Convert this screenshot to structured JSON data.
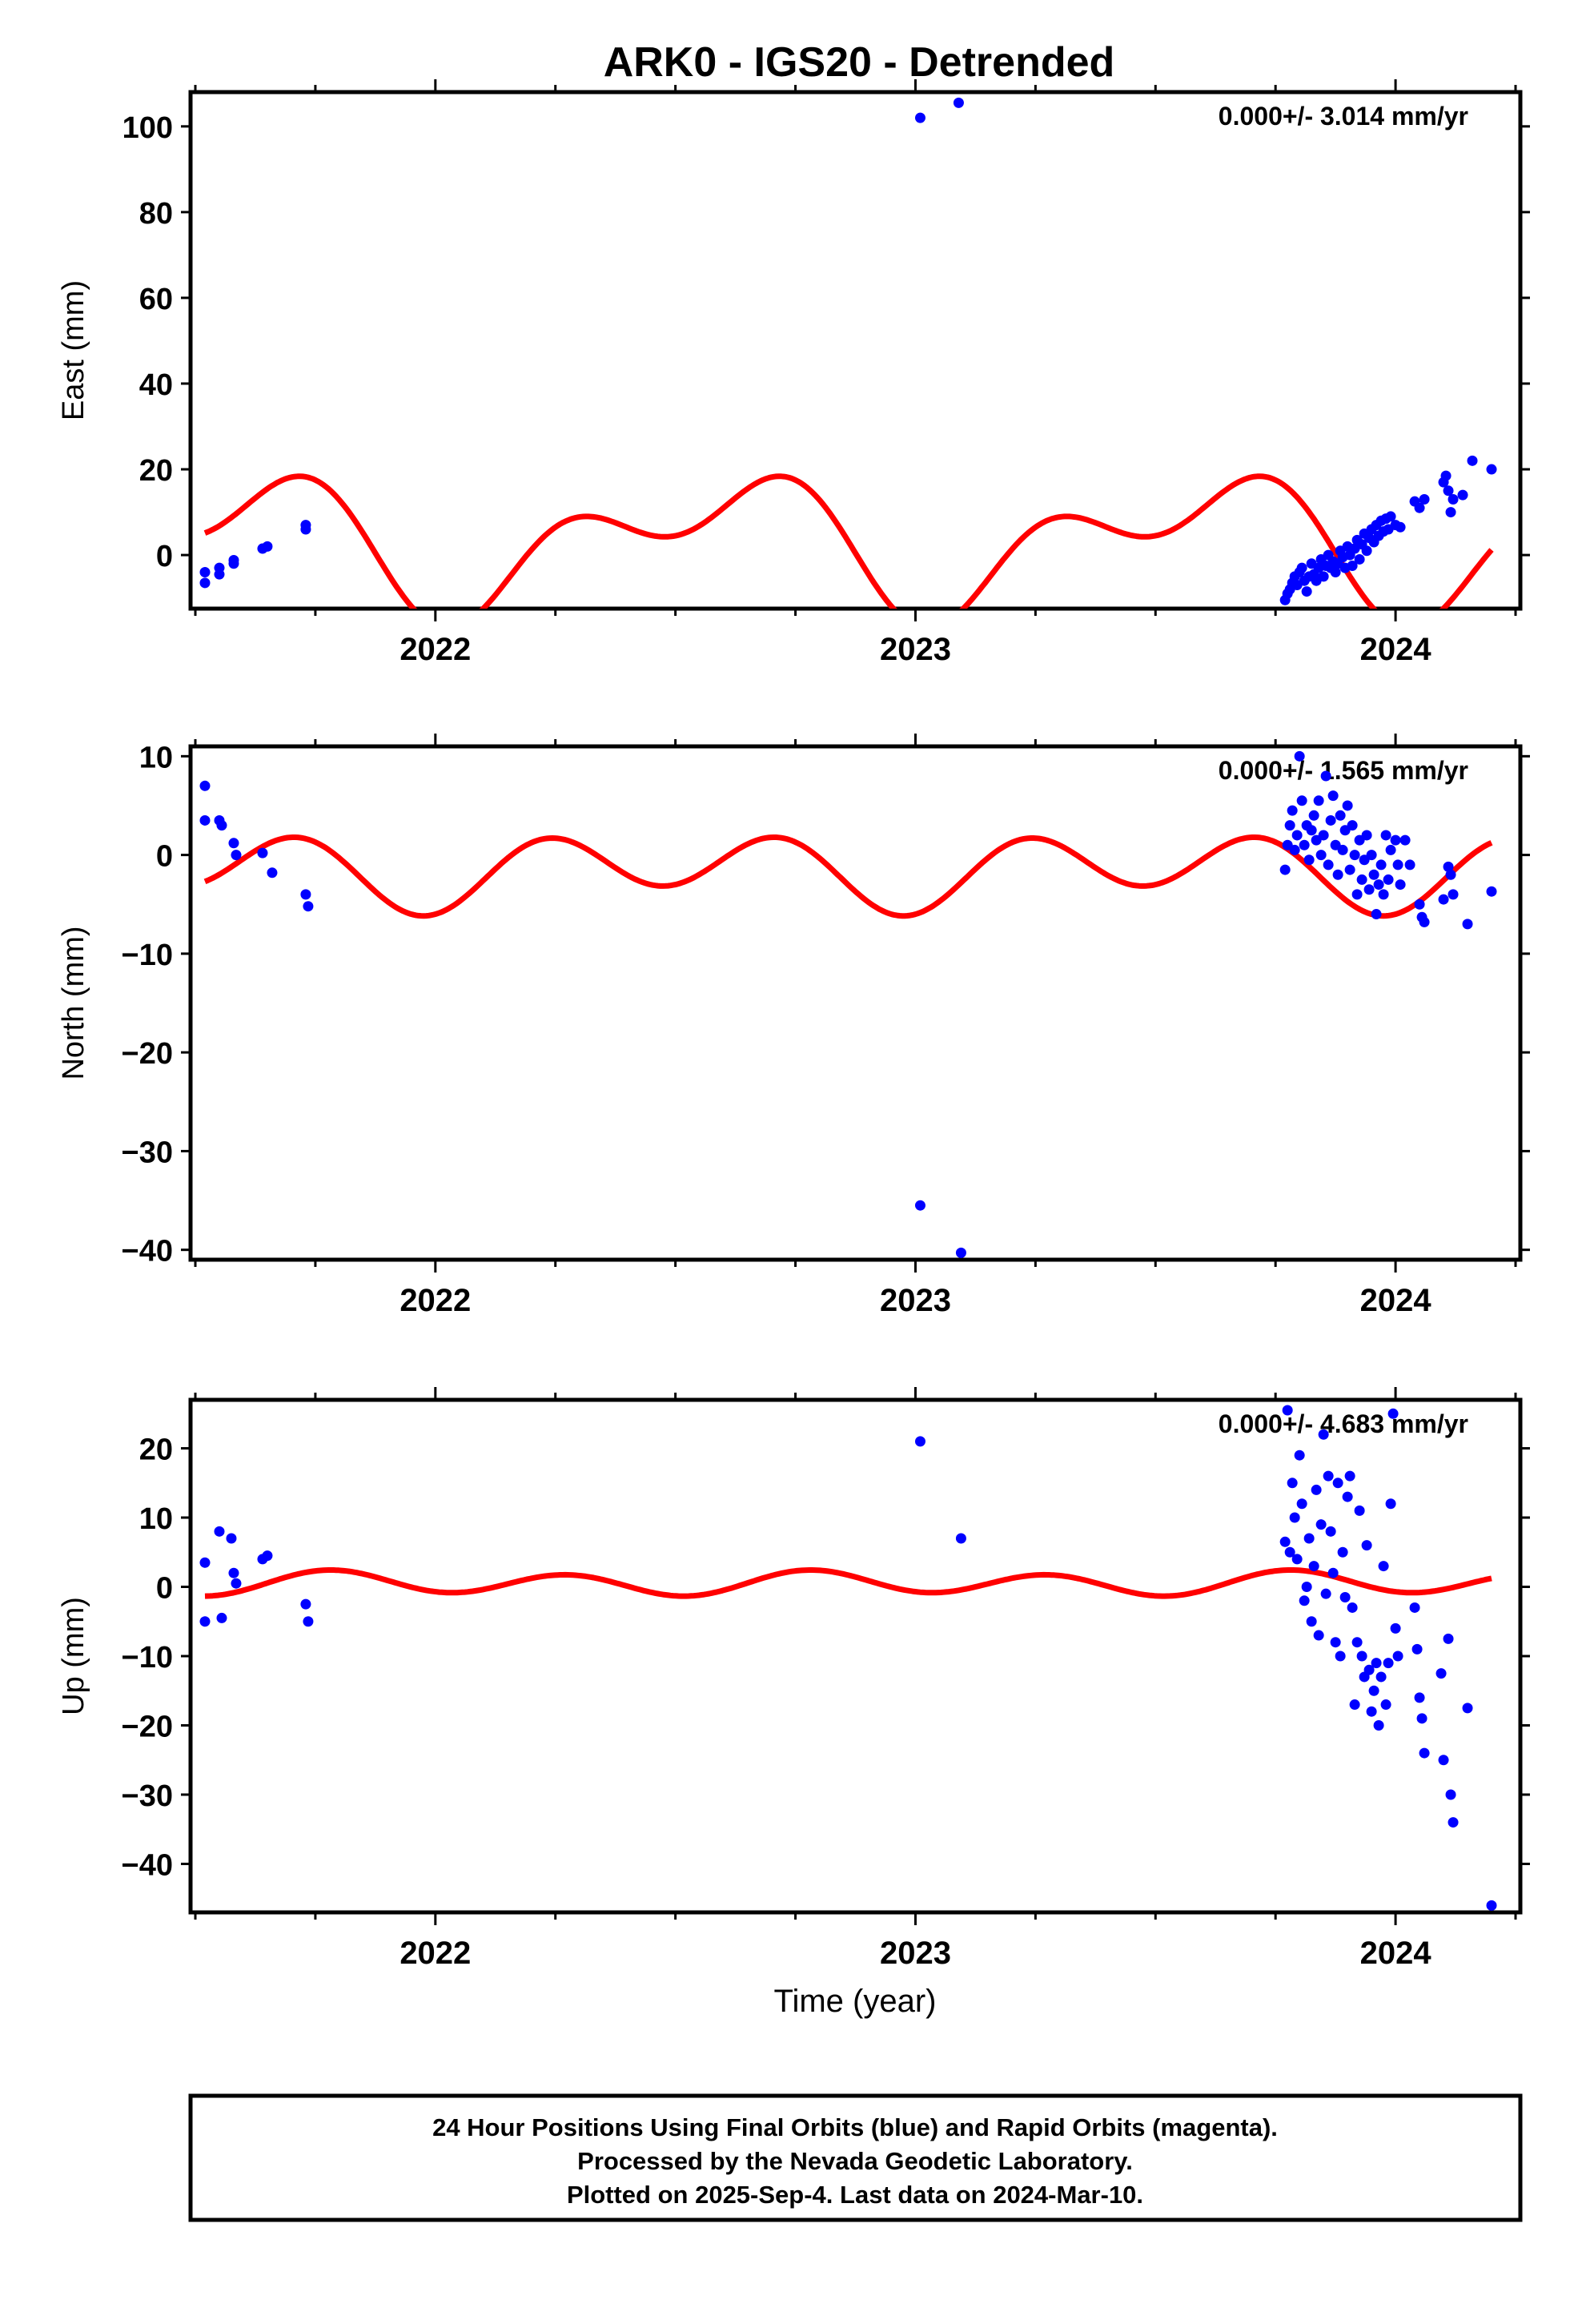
{
  "title": "ARK0 - IGS20 - Detrended",
  "xlabel": "Time (year)",
  "footer": {
    "line1": "24 Hour Positions Using Final Orbits (blue) and Rapid Orbits (magenta).",
    "line2": "Processed by the Nevada Geodetic Laboratory.",
    "line3": "Plotted on 2025-Sep-4. Last data on 2024-Mar-10."
  },
  "colors": {
    "points": "#0000ff",
    "model": "#ff0000",
    "axes": "#000000"
  },
  "chart_data": [
    {
      "type": "scatter",
      "panel": "east",
      "ylabel": "East (mm)",
      "rate_label": "0.000+/- 3.014 mm/yr",
      "xlim": [
        2021.49,
        2024.26
      ],
      "ylim": [
        -12.5,
        108
      ],
      "xticks": [
        2022,
        2023,
        2024
      ],
      "yticks": [
        100,
        80,
        60,
        40,
        20,
        0
      ],
      "ytick_labels": [
        "100",
        "80",
        "60",
        "40",
        "20",
        "0"
      ],
      "points": [
        [
          2021.52,
          -6.5
        ],
        [
          2021.52,
          -4
        ],
        [
          2021.55,
          -3
        ],
        [
          2021.55,
          -4.5
        ],
        [
          2021.58,
          -2
        ],
        [
          2021.58,
          -1.2
        ],
        [
          2021.64,
          1.5
        ],
        [
          2021.65,
          2
        ],
        [
          2021.73,
          6
        ],
        [
          2021.73,
          7
        ],
        [
          2023.01,
          102
        ],
        [
          2023.09,
          105.5
        ],
        [
          2023.77,
          -10.5
        ],
        [
          2023.775,
          -9
        ],
        [
          2023.78,
          -8
        ],
        [
          2023.785,
          -6.5
        ],
        [
          2023.79,
          -5
        ],
        [
          2023.795,
          -7
        ],
        [
          2023.8,
          -4
        ],
        [
          2023.805,
          -3
        ],
        [
          2023.81,
          -6
        ],
        [
          2023.815,
          -8.5
        ],
        [
          2023.82,
          -5
        ],
        [
          2023.825,
          -2
        ],
        [
          2023.83,
          -4.5
        ],
        [
          2023.835,
          -6
        ],
        [
          2023.84,
          -3
        ],
        [
          2023.845,
          -1
        ],
        [
          2023.85,
          -5
        ],
        [
          2023.855,
          -2.5
        ],
        [
          2023.86,
          0
        ],
        [
          2023.865,
          -3
        ],
        [
          2023.87,
          -1.5
        ],
        [
          2023.875,
          -4
        ],
        [
          2023.88,
          -2
        ],
        [
          2023.885,
          1
        ],
        [
          2023.89,
          -0.5
        ],
        [
          2023.895,
          -3
        ],
        [
          2023.9,
          2
        ],
        [
          2023.905,
          0
        ],
        [
          2023.91,
          -2.5
        ],
        [
          2023.915,
          1.5
        ],
        [
          2023.92,
          3.5
        ],
        [
          2023.925,
          -1
        ],
        [
          2023.93,
          2.5
        ],
        [
          2023.935,
          5
        ],
        [
          2023.94,
          1
        ],
        [
          2023.945,
          4
        ],
        [
          2023.95,
          6
        ],
        [
          2023.955,
          3
        ],
        [
          2023.96,
          7
        ],
        [
          2023.965,
          4.5
        ],
        [
          2023.97,
          8
        ],
        [
          2023.975,
          5.5
        ],
        [
          2023.98,
          8.5
        ],
        [
          2023.985,
          6
        ],
        [
          2023.99,
          9
        ],
        [
          2024.0,
          7
        ],
        [
          2024.01,
          6.5
        ],
        [
          2024.04,
          12.5
        ],
        [
          2024.05,
          11
        ],
        [
          2024.06,
          13
        ],
        [
          2024.1,
          17
        ],
        [
          2024.105,
          18.5
        ],
        [
          2024.11,
          15
        ],
        [
          2024.115,
          10
        ],
        [
          2024.12,
          13
        ],
        [
          2024.14,
          14
        ],
        [
          2024.16,
          22
        ],
        [
          2024.2,
          20
        ]
      ],
      "model": {
        "offset": 3,
        "annual_cos": -10.5,
        "annual_sin": -5.5,
        "semi_cos": -9,
        "semi_sin": -1
      }
    },
    {
      "type": "scatter",
      "panel": "north",
      "ylabel": "North (mm)",
      "rate_label": "0.000+/- 1.565 mm/yr",
      "xlim": [
        2021.49,
        2024.26
      ],
      "ylim": [
        -41,
        11
      ],
      "xticks": [
        2022,
        2023,
        2024
      ],
      "yticks": [
        10,
        0,
        -10,
        -20,
        -30,
        -40
      ],
      "ytick_labels": [
        "10",
        "0",
        "−10",
        "−20",
        "−30",
        "−40"
      ],
      "points": [
        [
          2021.52,
          7
        ],
        [
          2021.52,
          3.5
        ],
        [
          2021.55,
          3.5
        ],
        [
          2021.555,
          3
        ],
        [
          2021.58,
          1.2
        ],
        [
          2021.585,
          0
        ],
        [
          2021.64,
          0.2
        ],
        [
          2021.66,
          -1.8
        ],
        [
          2021.73,
          -4
        ],
        [
          2021.735,
          -5.2
        ],
        [
          2023.01,
          -35.5
        ],
        [
          2023.095,
          -40.3
        ],
        [
          2023.77,
          -1.5
        ],
        [
          2023.775,
          1
        ],
        [
          2023.78,
          3
        ],
        [
          2023.785,
          4.5
        ],
        [
          2023.79,
          0.5
        ],
        [
          2023.795,
          2
        ],
        [
          2023.8,
          10
        ],
        [
          2023.805,
          5.5
        ],
        [
          2023.81,
          1
        ],
        [
          2023.815,
          3
        ],
        [
          2023.82,
          -0.5
        ],
        [
          2023.825,
          2.5
        ],
        [
          2023.83,
          4
        ],
        [
          2023.835,
          1.5
        ],
        [
          2023.84,
          5.5
        ],
        [
          2023.845,
          0
        ],
        [
          2023.85,
          2
        ],
        [
          2023.855,
          8
        ],
        [
          2023.86,
          -1
        ],
        [
          2023.865,
          3.5
        ],
        [
          2023.87,
          6
        ],
        [
          2023.875,
          1
        ],
        [
          2023.88,
          -2
        ],
        [
          2023.885,
          4
        ],
        [
          2023.89,
          0.5
        ],
        [
          2023.895,
          2.5
        ],
        [
          2023.9,
          5
        ],
        [
          2023.905,
          -1.5
        ],
        [
          2023.91,
          3
        ],
        [
          2023.915,
          0
        ],
        [
          2023.92,
          -4
        ],
        [
          2023.925,
          1.5
        ],
        [
          2023.93,
          -2.5
        ],
        [
          2023.935,
          -0.5
        ],
        [
          2023.94,
          2
        ],
        [
          2023.945,
          -3.5
        ],
        [
          2023.95,
          0
        ],
        [
          2023.955,
          -2
        ],
        [
          2023.96,
          -6
        ],
        [
          2023.965,
          -3
        ],
        [
          2023.97,
          -1
        ],
        [
          2023.975,
          -4
        ],
        [
          2023.98,
          2
        ],
        [
          2023.985,
          -2.5
        ],
        [
          2023.99,
          0.5
        ],
        [
          2024.0,
          1.5
        ],
        [
          2024.005,
          -1
        ],
        [
          2024.01,
          -3
        ],
        [
          2024.02,
          1.5
        ],
        [
          2024.03,
          -1
        ],
        [
          2024.05,
          -5
        ],
        [
          2024.055,
          -6.3
        ],
        [
          2024.06,
          -6.8
        ],
        [
          2024.1,
          -4.5
        ],
        [
          2024.11,
          -1.2
        ],
        [
          2024.115,
          -2
        ],
        [
          2024.12,
          -4
        ],
        [
          2024.15,
          -7
        ],
        [
          2024.2,
          -3.7
        ]
      ],
      "model": {
        "offset": -1.5,
        "annual_cos": -1.5,
        "annual_sin": 0.2,
        "semi_cos": -3,
        "semi_sin": 1
      }
    },
    {
      "type": "scatter",
      "panel": "up",
      "ylabel": "Up (mm)",
      "rate_label": "0.000+/- 4.683 mm/yr",
      "xlim": [
        2021.49,
        2024.26
      ],
      "ylim": [
        -47,
        27
      ],
      "xticks": [
        2022,
        2023,
        2024
      ],
      "yticks": [
        20,
        10,
        0,
        -10,
        -20,
        -30,
        -40
      ],
      "ytick_labels": [
        "20",
        "10",
        "0",
        "−10",
        "−20",
        "−30",
        "−40"
      ],
      "points": [
        [
          2021.52,
          3.5
        ],
        [
          2021.52,
          -5
        ],
        [
          2021.55,
          8
        ],
        [
          2021.555,
          -4.5
        ],
        [
          2021.575,
          7
        ],
        [
          2021.58,
          2
        ],
        [
          2021.585,
          0.5
        ],
        [
          2021.64,
          4
        ],
        [
          2021.65,
          4.5
        ],
        [
          2021.73,
          -2.5
        ],
        [
          2021.735,
          -5
        ],
        [
          2023.01,
          21
        ],
        [
          2023.095,
          7
        ],
        [
          2023.77,
          6.5
        ],
        [
          2023.775,
          25.5
        ],
        [
          2023.78,
          5
        ],
        [
          2023.785,
          15
        ],
        [
          2023.79,
          10
        ],
        [
          2023.795,
          4
        ],
        [
          2023.8,
          19
        ],
        [
          2023.805,
          12
        ],
        [
          2023.81,
          -2
        ],
        [
          2023.815,
          0
        ],
        [
          2023.82,
          7
        ],
        [
          2023.825,
          -5
        ],
        [
          2023.83,
          3
        ],
        [
          2023.835,
          14
        ],
        [
          2023.84,
          -7
        ],
        [
          2023.845,
          9
        ],
        [
          2023.85,
          22
        ],
        [
          2023.855,
          -1
        ],
        [
          2023.86,
          16
        ],
        [
          2023.865,
          8
        ],
        [
          2023.87,
          2
        ],
        [
          2023.875,
          -8
        ],
        [
          2023.88,
          15
        ],
        [
          2023.885,
          -10
        ],
        [
          2023.89,
          5
        ],
        [
          2023.895,
          -1.5
        ],
        [
          2023.9,
          13
        ],
        [
          2023.905,
          16
        ],
        [
          2023.91,
          -3
        ],
        [
          2023.915,
          -17
        ],
        [
          2023.92,
          -8
        ],
        [
          2023.925,
          11
        ],
        [
          2023.93,
          -10
        ],
        [
          2023.935,
          -13
        ],
        [
          2023.94,
          6
        ],
        [
          2023.945,
          -12
        ],
        [
          2023.95,
          -18
        ],
        [
          2023.955,
          -15
        ],
        [
          2023.96,
          -11
        ],
        [
          2023.965,
          -20
        ],
        [
          2023.97,
          -13
        ],
        [
          2023.975,
          3
        ],
        [
          2023.98,
          -17
        ],
        [
          2023.985,
          -11
        ],
        [
          2023.99,
          12
        ],
        [
          2023.995,
          25
        ],
        [
          2024.0,
          -6
        ],
        [
          2024.005,
          -10
        ],
        [
          2024.04,
          -3
        ],
        [
          2024.045,
          -9
        ],
        [
          2024.05,
          -16
        ],
        [
          2024.055,
          -19
        ],
        [
          2024.06,
          -24
        ],
        [
          2024.095,
          -12.5
        ],
        [
          2024.1,
          -25
        ],
        [
          2024.11,
          -7.5
        ],
        [
          2024.115,
          -30
        ],
        [
          2024.12,
          -34
        ],
        [
          2024.15,
          -17.5
        ],
        [
          2024.2,
          -46
        ]
      ],
      "model": {
        "offset": 0.5,
        "annual_cos": 0.3,
        "annual_sin": -0.3,
        "semi_cos": -1.5,
        "semi_sin": -0.5
      }
    }
  ]
}
